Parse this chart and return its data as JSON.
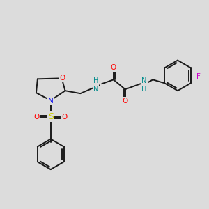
{
  "bg_color": "#dcdcdc",
  "bond_color": "#1a1a1a",
  "atom_colors": {
    "O": "#ff0000",
    "N": "#0000ee",
    "S": "#cccc00",
    "F": "#cc00cc",
    "NH": "#008b8b",
    "C": "#1a1a1a"
  },
  "figsize": [
    3.0,
    3.0
  ],
  "dpi": 100
}
